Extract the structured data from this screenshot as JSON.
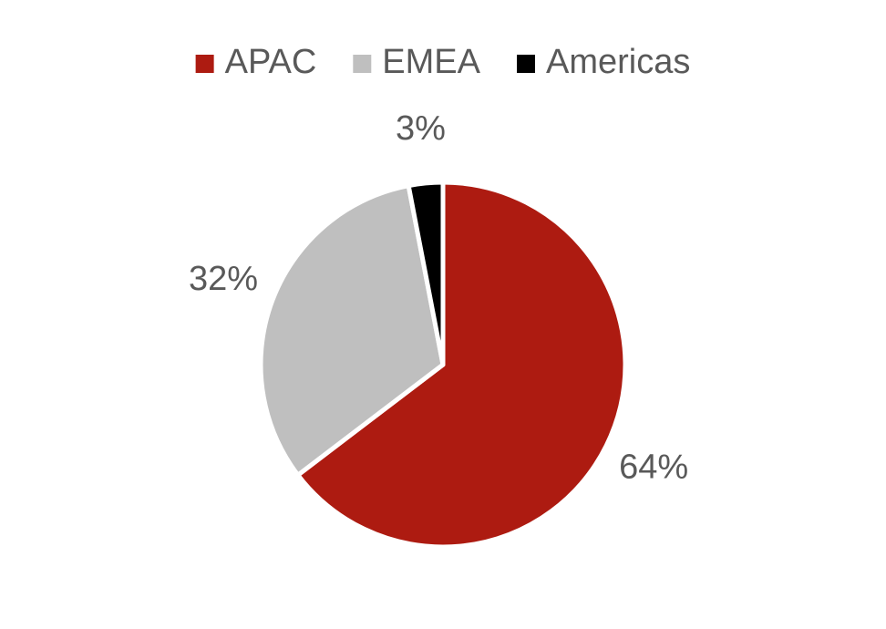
{
  "chart_data": {
    "type": "pie",
    "categories": [
      "APAC",
      "EMEA",
      "Americas"
    ],
    "values": [
      64,
      32,
      3
    ],
    "value_labels": [
      "64%",
      "32%",
      "3%"
    ],
    "colors": [
      "#ad1b11",
      "#bfbfbf",
      "#000000"
    ],
    "legend": "top"
  }
}
